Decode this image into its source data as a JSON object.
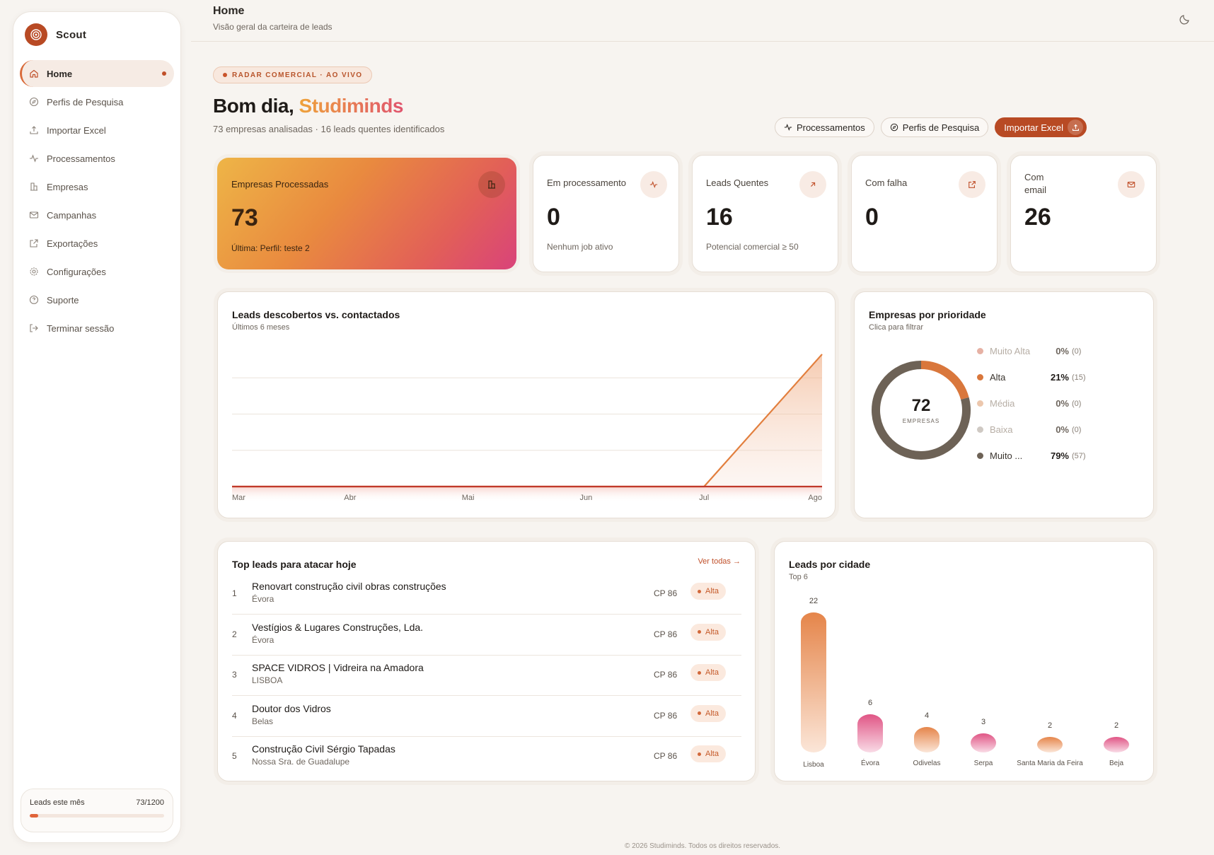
{
  "app": {
    "name": "Scout"
  },
  "sidebar": {
    "items": [
      {
        "label": "Home",
        "icon": "home-icon",
        "active": true
      },
      {
        "label": "Perfis de Pesquisa",
        "icon": "compass-icon"
      },
      {
        "label": "Importar Excel",
        "icon": "upload-icon"
      },
      {
        "label": "Processamentos",
        "icon": "activity-icon"
      },
      {
        "label": "Empresas",
        "icon": "building-icon"
      },
      {
        "label": "Campanhas",
        "icon": "mail-icon"
      },
      {
        "label": "Exportações",
        "icon": "external-link-icon"
      },
      {
        "label": "Configurações",
        "icon": "gear-icon"
      },
      {
        "label": "Suporte",
        "icon": "help-icon"
      },
      {
        "label": "Terminar sessão",
        "icon": "logout-icon"
      }
    ],
    "usage": {
      "label": "Leads este mês",
      "value": "73/1200",
      "fraction": 0.061
    }
  },
  "header": {
    "title": "Home",
    "subtitle": "Visão geral da carteira de leads",
    "theme_icon": "moon-icon"
  },
  "hero": {
    "pill": "RADAR COMERCIAL · AO VIVO",
    "greeting": "Bom dia,",
    "user": "Studiminds",
    "summary": "73 empresas analisadas · 16 leads quentes identificados",
    "actions": [
      "Processamentos",
      "Perfis de Pesquisa",
      "Importar Excel"
    ]
  },
  "stats": [
    {
      "label": "Empresas Processadas",
      "value": "73",
      "foot": "Última: Perfil: teste 2",
      "icon": "building-icon"
    },
    {
      "label": "Em processamento",
      "value": "0",
      "foot": "Nenhum job ativo",
      "icon": "activity-icon"
    },
    {
      "label": "Leads Quentes",
      "value": "16",
      "foot": "Potencial comercial ≥ 50",
      "icon": "arrow-up-right-icon"
    },
    {
      "label": "Com falha",
      "value": "0",
      "foot": "",
      "icon": "external-link-icon"
    },
    {
      "label": "Com email",
      "value": "26",
      "foot": "",
      "icon": "mail-icon"
    }
  ],
  "chart_data": [
    {
      "type": "area",
      "title": "Leads descobertos vs. contactados",
      "subtitle": "Últimos 6 meses",
      "categories": [
        "Mar",
        "Abr",
        "Mai",
        "Jun",
        "Jul",
        "Ago"
      ],
      "series": [
        {
          "values": [
            0,
            0,
            0,
            0,
            0,
            73
          ],
          "color": "#e27f3e"
        },
        {
          "values": [
            0,
            0,
            0,
            0,
            0,
            0
          ],
          "color": "#c0392b"
        }
      ],
      "ylim": [
        0,
        80
      ],
      "grid": true
    },
    {
      "type": "pie",
      "title": "Empresas por prioridade",
      "subtitle": "Clica para filtrar",
      "center_value": "72",
      "center_label": "EMPRESAS",
      "slices": [
        {
          "label": "Muito Alta",
          "pct": "0%",
          "count": "(0)",
          "value": 0,
          "color": "#e6b1a4",
          "muted": true
        },
        {
          "label": "Alta",
          "pct": "21%",
          "count": "(15)",
          "value": 15,
          "color": "#d9773c",
          "muted": false
        },
        {
          "label": "Média",
          "pct": "0%",
          "count": "(0)",
          "value": 0,
          "color": "#ecc7ad",
          "muted": true
        },
        {
          "label": "Baixa",
          "pct": "0%",
          "count": "(0)",
          "value": 0,
          "color": "#cfc9c3",
          "muted": true
        },
        {
          "label": "Muito ...",
          "pct": "79%",
          "count": "(57)",
          "value": 57,
          "color": "#6d6256",
          "muted": false
        }
      ]
    },
    {
      "type": "bar",
      "title": "Leads por cidade",
      "subtitle": "Top 6",
      "categories": [
        "Lisboa",
        "Évora",
        "Odivelas",
        "Serpa",
        "Santa Maria da Feira",
        "Beja"
      ],
      "values": [
        22,
        6,
        4,
        3,
        2,
        2
      ],
      "ylim": [
        0,
        22
      ]
    }
  ],
  "top_leads": {
    "title": "Top leads para atacar hoje",
    "link": "Ver todas →",
    "rows": [
      {
        "n": "1",
        "name": "Renovart construção civil obras construções",
        "city": "Évora",
        "cp": "CP 86",
        "badge": "Alta"
      },
      {
        "n": "2",
        "name": "Vestígios & Lugares Construções, Lda.",
        "city": "Évora",
        "cp": "CP 86",
        "badge": "Alta"
      },
      {
        "n": "3",
        "name": "SPACE VIDROS | Vidreira na Amadora",
        "city": "LISBOA",
        "cp": "CP 86",
        "badge": "Alta"
      },
      {
        "n": "4",
        "name": "Doutor dos Vidros",
        "city": "Belas",
        "cp": "CP 86",
        "badge": "Alta"
      },
      {
        "n": "5",
        "name": "Construção Civil Sérgio Tapadas",
        "city": "Nossa Sra. de Guadalupe",
        "cp": "CP 86",
        "badge": "Alta"
      }
    ]
  },
  "footer": "© 2026 Studiminds. Todos os direitos reservados."
}
